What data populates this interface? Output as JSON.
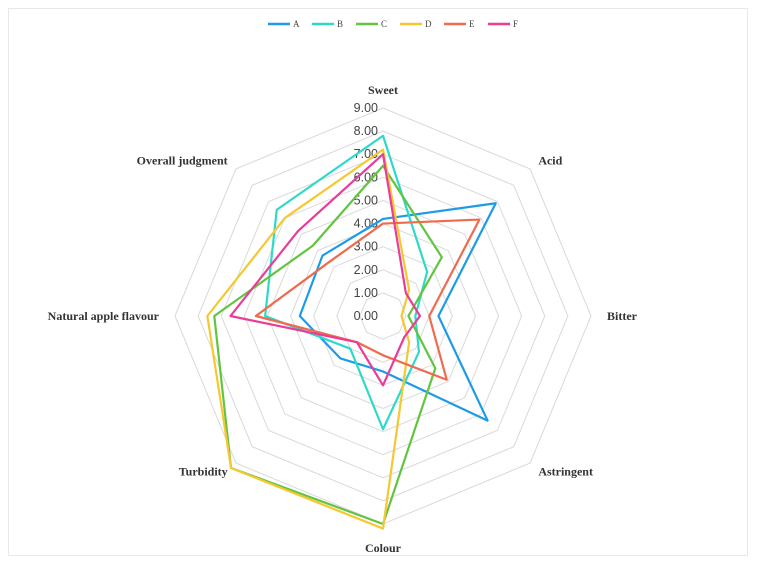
{
  "chart_data": {
    "type": "radar",
    "axes": [
      "Sweet",
      "Acid",
      "Bitter",
      "Astringent",
      "Colour",
      "Turbidity",
      "Natural apple flavour",
      "Overall judgment"
    ],
    "ticks": [
      "0.00",
      "1.00",
      "2.00",
      "3.00",
      "4.00",
      "5.00",
      "6.00",
      "7.00",
      "8.00",
      "9.00"
    ],
    "rmax": 9,
    "grid": true,
    "legend_position": "top",
    "series": [
      {
        "name": "A",
        "color": "#1e9be6",
        "values": [
          4.2,
          6.9,
          2.4,
          6.4,
          2.4,
          2.6,
          3.6,
          3.7
        ]
      },
      {
        "name": "B",
        "color": "#2fd9c9",
        "values": [
          7.8,
          2.7,
          1.4,
          2.2,
          4.9,
          2.0,
          5.1,
          6.5
        ]
      },
      {
        "name": "C",
        "color": "#62c440",
        "values": [
          6.5,
          3.6,
          1.1,
          3.2,
          9.0,
          9.3,
          7.3,
          4.3
        ]
      },
      {
        "name": "D",
        "color": "#f5c832",
        "values": [
          7.2,
          1.6,
          0.8,
          1.6,
          9.2,
          9.3,
          7.6,
          6.0
        ]
      },
      {
        "name": "E",
        "color": "#ee6b4d",
        "values": [
          4.0,
          5.9,
          2.0,
          3.9,
          1.7,
          1.6,
          5.5,
          3.3
        ]
      },
      {
        "name": "F",
        "color": "#e83d99",
        "values": [
          7.0,
          1.4,
          1.6,
          1.3,
          3.0,
          1.6,
          6.6,
          5.2
        ]
      }
    ]
  }
}
